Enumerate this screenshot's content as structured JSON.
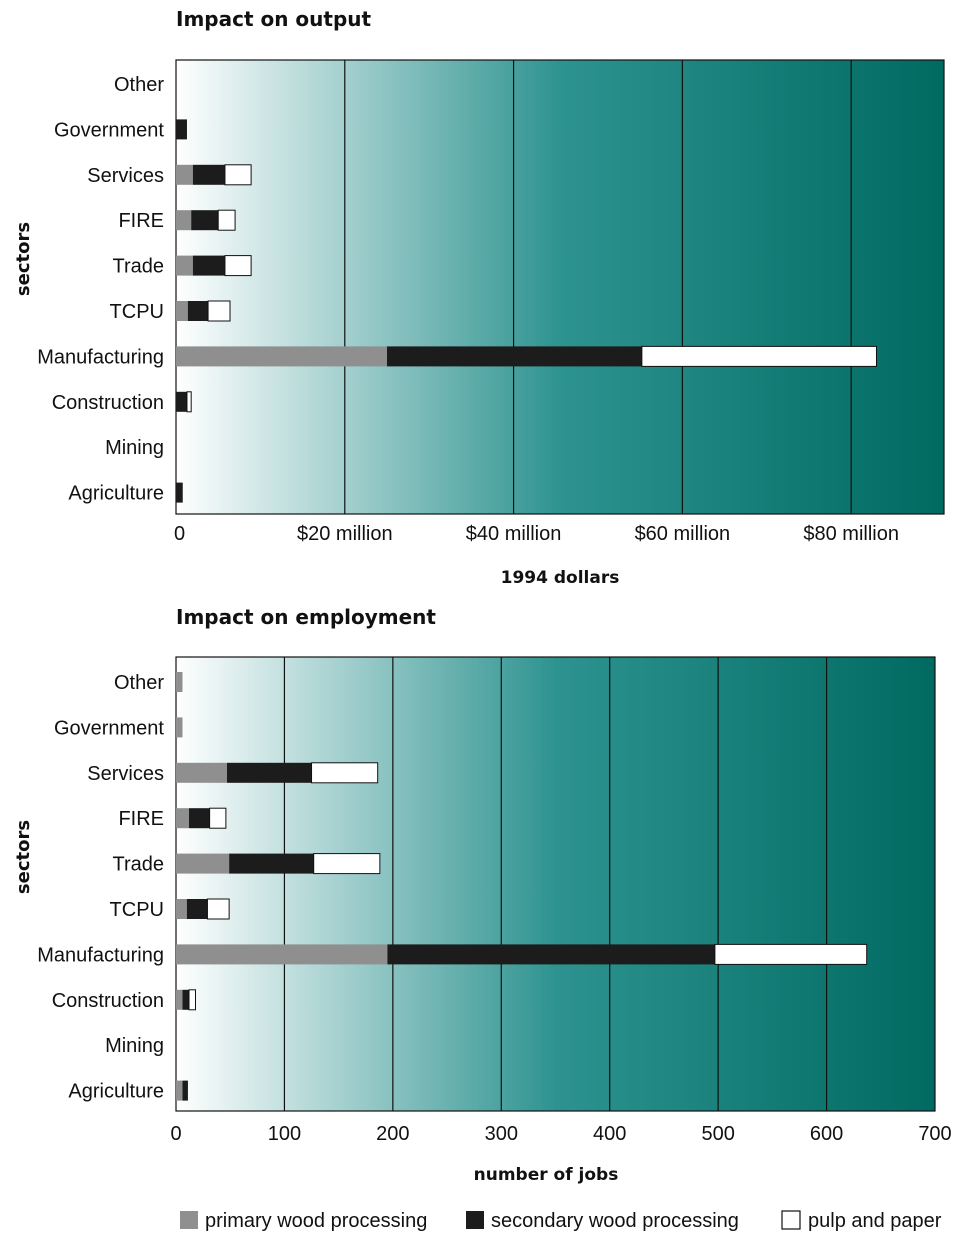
{
  "colors": {
    "primary": "#8f8f8f",
    "secondary": "#1c1c1c",
    "pulp": "#ffffff",
    "bg_start": "#ffffff",
    "bg_mid": "#2e9390",
    "bg_end": "#006a61"
  },
  "legend": [
    {
      "label": "primary wood processing",
      "color": "#8f8f8f",
      "icon": "gray-square"
    },
    {
      "label": "secondary wood processing",
      "color": "#1c1c1c",
      "icon": "black-square"
    },
    {
      "label": "pulp and paper",
      "color": "#ffffff",
      "icon": "white-square"
    }
  ],
  "chart_data": [
    {
      "type": "bar",
      "orientation": "horizontal",
      "stacked": true,
      "title": "Impact on output",
      "xlabel": "1994 dollars",
      "ylabel": "sectors",
      "xlim": [
        0,
        91
      ],
      "x_ticks": [
        0,
        20,
        40,
        60,
        80
      ],
      "x_tick_labels": [
        "0",
        "$20 million",
        "$40 million",
        "$60 million",
        "$80 million"
      ],
      "grid": true,
      "categories": [
        "Other",
        "Government",
        "Services",
        "FIRE",
        "Trade",
        "TCPU",
        "Manufacturing",
        "Construction",
        "Mining",
        "Agriculture"
      ],
      "series": [
        {
          "name": "primary wood processing",
          "values": [
            0,
            0,
            2.0,
            1.8,
            2.0,
            1.4,
            25.0,
            0,
            0,
            0
          ]
        },
        {
          "name": "secondary wood processing",
          "values": [
            0,
            1.3,
            3.8,
            3.2,
            3.8,
            2.4,
            30.2,
            1.3,
            0,
            0.8
          ]
        },
        {
          "name": "pulp and paper",
          "values": [
            0,
            0,
            3.1,
            2.0,
            3.1,
            2.6,
            27.8,
            0.5,
            0,
            0
          ]
        }
      ]
    },
    {
      "type": "bar",
      "orientation": "horizontal",
      "stacked": true,
      "title": "Impact on employment",
      "xlabel": "number of jobs",
      "ylabel": "sectors",
      "xlim": [
        0,
        700
      ],
      "x_ticks": [
        0,
        100,
        200,
        300,
        400,
        500,
        600,
        700
      ],
      "x_tick_labels": [
        "0",
        "100",
        "200",
        "300",
        "400",
        "500",
        "600",
        "700"
      ],
      "grid": true,
      "categories": [
        "Other",
        "Government",
        "Services",
        "FIRE",
        "Trade",
        "TCPU",
        "Manufacturing",
        "Construction",
        "Mining",
        "Agriculture"
      ],
      "series": [
        {
          "name": "primary wood processing",
          "values": [
            6,
            6,
            47,
            12,
            49,
            10,
            195,
            6,
            0,
            6
          ]
        },
        {
          "name": "secondary wood processing",
          "values": [
            0,
            0,
            78,
            19,
            78,
            19,
            302,
            6,
            0,
            5
          ]
        },
        {
          "name": "pulp and paper",
          "values": [
            0,
            0,
            61,
            15,
            61,
            20,
            140,
            6,
            0,
            0
          ]
        }
      ]
    }
  ]
}
